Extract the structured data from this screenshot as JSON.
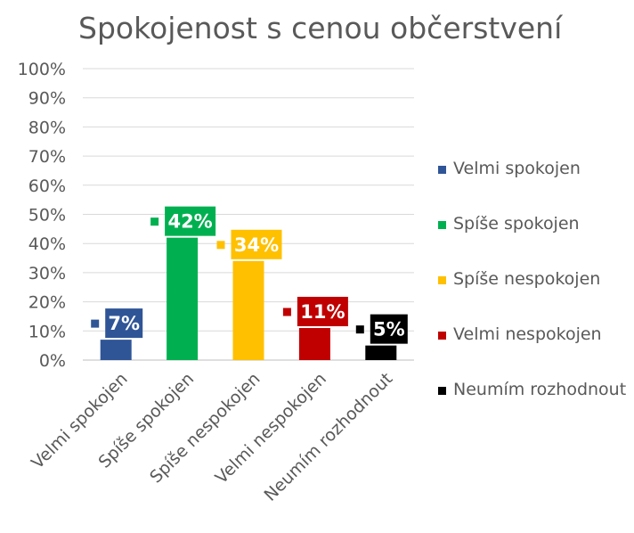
{
  "chart_data": {
    "type": "bar",
    "title": "Spokojenost s cenou občerstvení",
    "xlabel": "",
    "ylabel": "",
    "ylim": [
      0,
      100
    ],
    "y_ticks": [
      "0%",
      "10%",
      "20%",
      "30%",
      "40%",
      "50%",
      "60%",
      "70%",
      "80%",
      "90%",
      "100%"
    ],
    "categories": [
      "Velmi spokojen",
      "Spíše spokojen",
      "Spíše nespokojen",
      "Velmi nespokojen",
      "Neumím rozhodnout"
    ],
    "values": [
      7,
      42,
      34,
      11,
      5
    ],
    "data_labels": [
      "7%",
      "42%",
      "34%",
      "11%",
      "5%"
    ],
    "colors": [
      "#2f5597",
      "#00b050",
      "#ffc000",
      "#c00000",
      "#000000"
    ],
    "grid": true,
    "legend": {
      "position": "right",
      "entries": [
        {
          "label": "Velmi spokojen",
          "color": "#2f5597"
        },
        {
          "label": "Spíše spokojen",
          "color": "#00b050"
        },
        {
          "label": "Spíše nespokojen",
          "color": "#ffc000"
        },
        {
          "label": "Velmi nespokojen",
          "color": "#c00000"
        },
        {
          "label": "Neumím rozhodnout",
          "color": "#000000"
        }
      ]
    }
  }
}
